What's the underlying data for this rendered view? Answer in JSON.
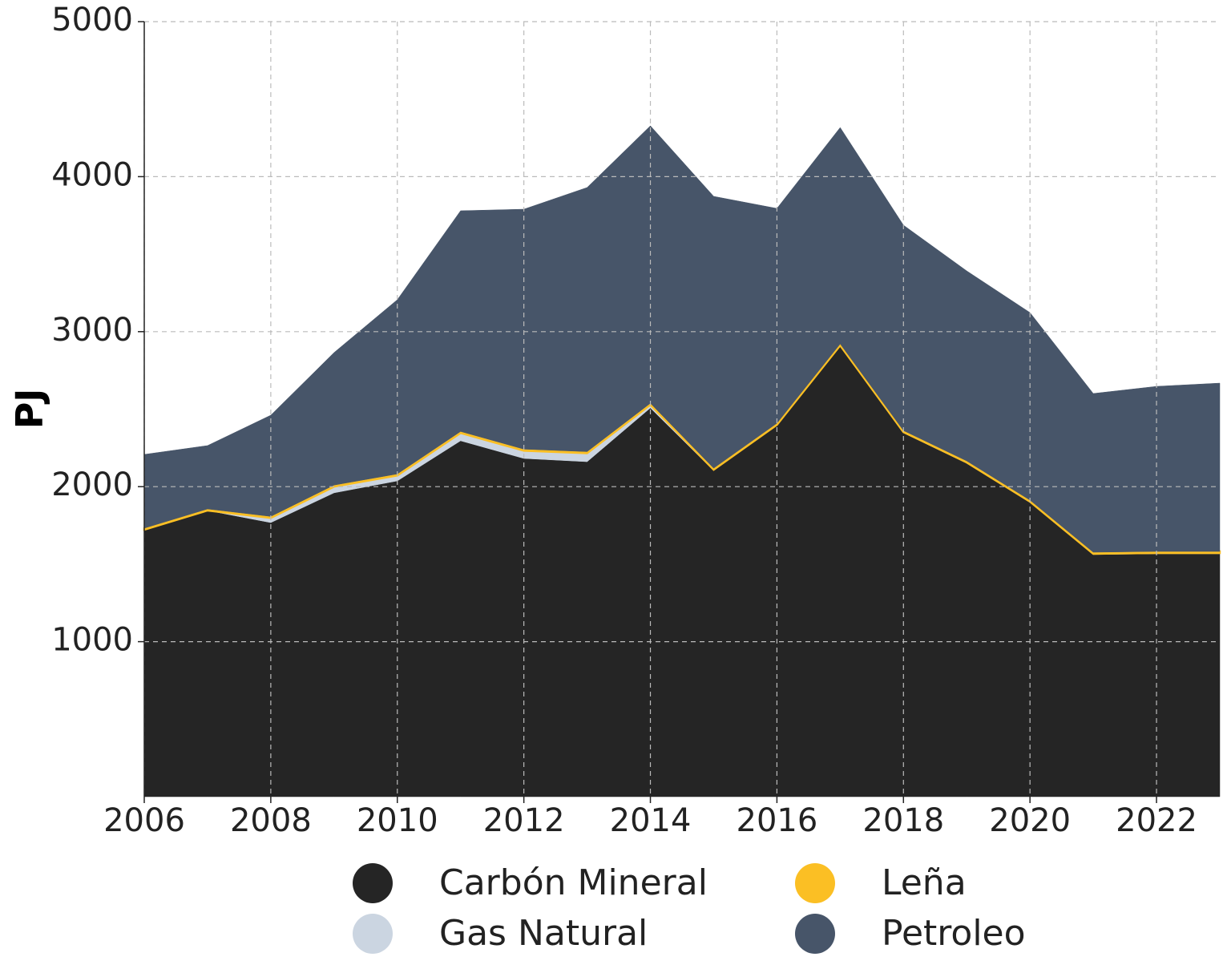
{
  "chart_data": {
    "type": "stacked-area",
    "y_label": "PJ",
    "x": [
      2006,
      2007,
      2008,
      2009,
      2010,
      2011,
      2012,
      2013,
      2014,
      2015,
      2016,
      2017,
      2018,
      2019,
      2020,
      2021,
      2022,
      2023
    ],
    "series": [
      {
        "name": "Carbón Mineral",
        "color": "#252525",
        "values": [
          1722,
          1846,
          1768,
          1960,
          2037,
          2296,
          2182,
          2161,
          2508,
          2104,
          2394,
          2906,
          2347,
          2151,
          1898,
          1562,
          1567,
          1567
        ]
      },
      {
        "name": "Gas Natural",
        "color": "#cbd5e1",
        "values": [
          0,
          0,
          30,
          40,
          35,
          50,
          50,
          55,
          20,
          5,
          5,
          5,
          5,
          5,
          5,
          5,
          5,
          5
        ]
      },
      {
        "name": "Leña",
        "color": "#fbbf24",
        "values": [
          10,
          10,
          10,
          10,
          10,
          10,
          10,
          10,
          10,
          10,
          10,
          10,
          10,
          10,
          10,
          10,
          10,
          10
        ]
      },
      {
        "name": "Petroleo",
        "color": "#475569",
        "values": [
          476,
          409,
          653,
          855,
          1124,
          1424,
          1548,
          1704,
          1790,
          1754,
          1386,
          1396,
          1325,
          1226,
          1210,
          1024,
          1065,
          1086
        ]
      }
    ],
    "xlim": [
      2006,
      2023
    ],
    "xticks": [
      2006,
      2008,
      2010,
      2012,
      2014,
      2016,
      2018,
      2020,
      2022
    ],
    "ylim": [
      0,
      5000
    ],
    "yticks": [
      1000,
      2000,
      3000,
      4000,
      5000
    ],
    "grid": true,
    "legend": "bottom"
  }
}
